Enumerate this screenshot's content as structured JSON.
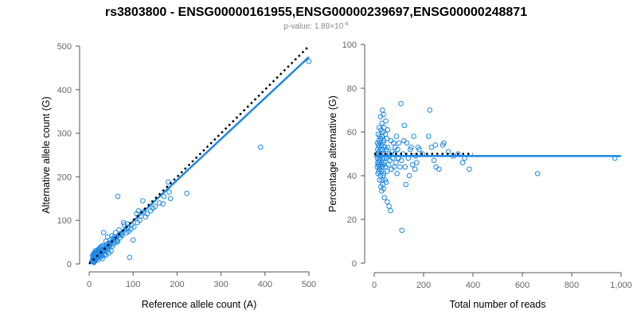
{
  "figure": {
    "title": "rs3803800 - ENSG00000161955,ENSG00000239697,ENSG00000248871",
    "subtitle_prefix": "p-value: 1.89×10",
    "subtitle_exponent": "-4"
  },
  "colors": {
    "points": "#1E88E5",
    "fit_line": "#1E88E5",
    "reference_line": "#000000",
    "axis": "#555555"
  },
  "chart_data": [
    {
      "type": "scatter",
      "name": "allele-counts",
      "xlabel": "Reference allele count (A)",
      "ylabel": "Alternative allele count (G)",
      "xlim": [
        0,
        500
      ],
      "ylim": [
        0,
        500
      ],
      "xticks": [
        0,
        100,
        200,
        300,
        400,
        500
      ],
      "xtick_labels": [
        "0",
        "100",
        "200",
        "300",
        "400",
        "500"
      ],
      "yticks": [
        0,
        100,
        200,
        300,
        400,
        500
      ],
      "ytick_labels": [
        "0",
        "100",
        "200",
        "300",
        "400",
        "500"
      ],
      "points": [
        [
          500,
          465
        ],
        [
          390,
          268
        ],
        [
          222,
          162
        ],
        [
          180,
          188
        ],
        [
          182,
          165
        ],
        [
          185,
          150
        ],
        [
          168,
          138
        ],
        [
          150,
          132
        ],
        [
          140,
          122
        ],
        [
          128,
          108
        ],
        [
          122,
          145
        ],
        [
          112,
          122
        ],
        [
          108,
          115
        ],
        [
          102,
          85
        ],
        [
          97,
          90
        ],
        [
          88,
          82
        ],
        [
          80,
          90
        ],
        [
          78,
          95
        ],
        [
          72,
          70
        ],
        [
          68,
          78
        ],
        [
          65,
          155
        ],
        [
          62,
          62
        ],
        [
          60,
          72
        ],
        [
          55,
          58
        ],
        [
          52,
          65
        ],
        [
          50,
          50
        ],
        [
          48,
          55
        ],
        [
          45,
          48
        ],
        [
          42,
          62
        ],
        [
          40,
          45
        ],
        [
          38,
          52
        ],
        [
          35,
          40
        ],
        [
          33,
          72
        ],
        [
          30,
          42
        ],
        [
          28,
          35
        ],
        [
          26,
          30
        ],
        [
          25,
          38
        ],
        [
          23,
          28
        ],
        [
          22,
          32
        ],
        [
          20,
          25
        ],
        [
          19,
          30
        ],
        [
          18,
          22
        ],
        [
          17,
          18
        ],
        [
          16,
          26
        ],
        [
          15,
          20
        ],
        [
          14,
          15
        ],
        [
          13,
          22
        ],
        [
          12,
          12
        ],
        [
          11,
          18
        ],
        [
          10,
          14
        ],
        [
          10,
          8
        ],
        [
          12,
          6
        ],
        [
          14,
          10
        ],
        [
          16,
          12
        ],
        [
          18,
          15
        ],
        [
          20,
          10
        ],
        [
          22,
          18
        ],
        [
          24,
          22
        ],
        [
          26,
          20
        ],
        [
          28,
          25
        ],
        [
          30,
          28
        ],
        [
          32,
          30
        ],
        [
          34,
          33
        ],
        [
          36,
          32
        ],
        [
          38,
          36
        ],
        [
          40,
          38
        ],
        [
          42,
          40
        ],
        [
          44,
          42
        ],
        [
          46,
          40
        ],
        [
          48,
          45
        ],
        [
          35,
          22
        ],
        [
          30,
          18
        ],
        [
          25,
          15
        ],
        [
          20,
          16
        ],
        [
          15,
          8
        ],
        [
          12,
          14
        ],
        [
          9,
          10
        ],
        [
          8,
          12
        ],
        [
          10,
          20
        ],
        [
          13,
          25
        ],
        [
          16,
          28
        ],
        [
          20,
          33
        ],
        [
          24,
          35
        ],
        [
          28,
          40
        ],
        [
          55,
          45
        ],
        [
          58,
          50
        ],
        [
          62,
          55
        ],
        [
          65,
          52
        ],
        [
          70,
          60
        ],
        [
          75,
          65
        ],
        [
          85,
          72
        ],
        [
          90,
          75
        ],
        [
          95,
          80
        ],
        [
          100,
          55
        ],
        [
          92,
          15
        ],
        [
          110,
          95
        ],
        [
          118,
          110
        ],
        [
          132,
          115
        ],
        [
          145,
          128
        ],
        [
          160,
          140
        ],
        [
          50,
          30
        ],
        [
          45,
          25
        ],
        [
          40,
          28
        ],
        [
          35,
          30
        ],
        [
          22,
          25
        ],
        [
          18,
          28
        ],
        [
          14,
          30
        ],
        [
          11,
          25
        ],
        [
          9,
          15
        ],
        [
          8,
          20
        ],
        [
          7,
          6
        ],
        [
          9,
          5
        ],
        [
          11,
          3
        ],
        [
          30,
          12
        ],
        [
          38,
          20
        ],
        [
          44,
          35
        ],
        [
          52,
          40
        ],
        [
          57,
          62
        ],
        [
          63,
          50
        ],
        [
          67,
          65
        ],
        [
          73,
          68
        ],
        [
          82,
          78
        ],
        [
          87,
          92
        ],
        [
          115,
          100
        ],
        [
          124,
          120
        ],
        [
          170,
          155
        ]
      ],
      "fit_line": [
        [
          0,
          4
        ],
        [
          500,
          475
        ]
      ],
      "reference_line": [
        [
          0,
          0
        ],
        [
          500,
          500
        ]
      ]
    },
    {
      "type": "scatter",
      "name": "percentage-alternative",
      "xlabel": "Total number of reads",
      "ylabel": "Percentage alternative (G)",
      "xlim": [
        0,
        1000
      ],
      "ylim": [
        0,
        100
      ],
      "xticks": [
        0,
        200,
        400,
        600,
        800,
        1000
      ],
      "xtick_labels": [
        "0",
        "200",
        "400",
        "600",
        "800",
        "1,000"
      ],
      "yticks": [
        0,
        20,
        40,
        60,
        80,
        100
      ],
      "ytick_labels": [
        "0",
        "20",
        "40",
        "60",
        "80",
        "100"
      ],
      "points": [
        [
          975,
          48
        ],
        [
          662,
          41
        ],
        [
          385,
          43
        ],
        [
          366,
          48
        ],
        [
          358,
          46
        ],
        [
          340,
          50
        ],
        [
          320,
          49
        ],
        [
          300,
          51
        ],
        [
          282,
          55
        ],
        [
          278,
          54
        ],
        [
          262,
          43
        ],
        [
          250,
          44
        ],
        [
          248,
          54
        ],
        [
          242,
          47
        ],
        [
          232,
          53
        ],
        [
          225,
          70
        ],
        [
          220,
          58
        ],
        [
          195,
          50
        ],
        [
          182,
          52
        ],
        [
          177,
          53
        ],
        [
          172,
          46
        ],
        [
          168,
          49
        ],
        [
          165,
          43
        ],
        [
          160,
          58
        ],
        [
          155,
          45
        ],
        [
          150,
          53
        ],
        [
          146,
          52
        ],
        [
          142,
          40
        ],
        [
          138,
          48
        ],
        [
          132,
          55
        ],
        [
          128,
          36
        ],
        [
          125,
          44
        ],
        [
          122,
          63
        ],
        [
          120,
          56
        ],
        [
          117,
          50
        ],
        [
          112,
          15
        ],
        [
          110,
          47
        ],
        [
          108,
          73
        ],
        [
          104,
          44
        ],
        [
          100,
          55
        ],
        [
          98,
          48
        ],
        [
          95,
          52
        ],
        [
          92,
          41
        ],
        [
          90,
          58
        ],
        [
          88,
          46
        ],
        [
          85,
          53
        ],
        [
          83,
          50
        ],
        [
          80,
          44
        ],
        [
          78,
          55
        ],
        [
          75,
          48
        ],
        [
          72,
          51
        ],
        [
          70,
          43
        ],
        [
          68,
          56
        ],
        [
          66,
          24
        ],
        [
          64,
          47
        ],
        [
          62,
          50
        ],
        [
          60,
          26
        ],
        [
          58,
          49
        ],
        [
          57,
          45
        ],
        [
          55,
          53
        ],
        [
          54,
          61
        ],
        [
          53,
          28
        ],
        [
          52,
          42
        ],
        [
          51,
          57
        ],
        [
          50,
          48
        ],
        [
          49,
          37
        ],
        [
          48,
          52
        ],
        [
          47,
          65
        ],
        [
          46,
          44
        ],
        [
          45,
          59
        ],
        [
          44,
          38
        ],
        [
          43,
          53
        ],
        [
          42,
          48
        ],
        [
          41,
          30
        ],
        [
          40,
          62
        ],
        [
          40,
          46
        ],
        [
          39,
          56
        ],
        [
          39,
          41
        ],
        [
          38,
          50
        ],
        [
          38,
          34
        ],
        [
          37,
          68
        ],
        [
          37,
          45
        ],
        [
          36,
          55
        ],
        [
          36,
          40
        ],
        [
          35,
          48
        ],
        [
          35,
          60
        ],
        [
          34,
          36
        ],
        [
          34,
          52
        ],
        [
          33,
          70
        ],
        [
          33,
          44
        ],
        [
          32,
          58
        ],
        [
          32,
          38
        ],
        [
          31,
          50
        ],
        [
          31,
          64
        ],
        [
          30,
          46
        ],
        [
          30,
          33
        ],
        [
          29,
          54
        ],
        [
          29,
          42
        ],
        [
          28,
          61
        ],
        [
          28,
          49
        ],
        [
          27,
          35
        ],
        [
          27,
          57
        ],
        [
          26,
          45
        ],
        [
          26,
          52
        ],
        [
          25,
          40
        ],
        [
          25,
          67
        ],
        [
          24,
          48
        ],
        [
          24,
          55
        ],
        [
          23,
          43
        ],
        [
          23,
          50
        ],
        [
          22,
          58
        ],
        [
          22,
          38
        ],
        [
          21,
          53
        ],
        [
          21,
          46
        ],
        [
          20,
          62
        ],
        [
          20,
          44
        ],
        [
          19,
          51
        ],
        [
          19,
          56
        ],
        [
          18,
          47
        ],
        [
          18,
          42
        ],
        [
          17,
          54
        ],
        [
          17,
          49
        ],
        [
          16,
          45
        ],
        [
          16,
          59
        ],
        [
          15,
          50
        ],
        [
          15,
          41
        ],
        [
          14,
          52
        ],
        [
          14,
          46
        ],
        [
          13,
          48
        ],
        [
          13,
          55
        ],
        [
          12,
          44
        ],
        [
          12,
          50
        ]
      ],
      "fit_line": [
        [
          0,
          49
        ],
        [
          1000,
          49
        ]
      ],
      "reference_line": [
        [
          0,
          50
        ],
        [
          400,
          50
        ]
      ]
    }
  ]
}
